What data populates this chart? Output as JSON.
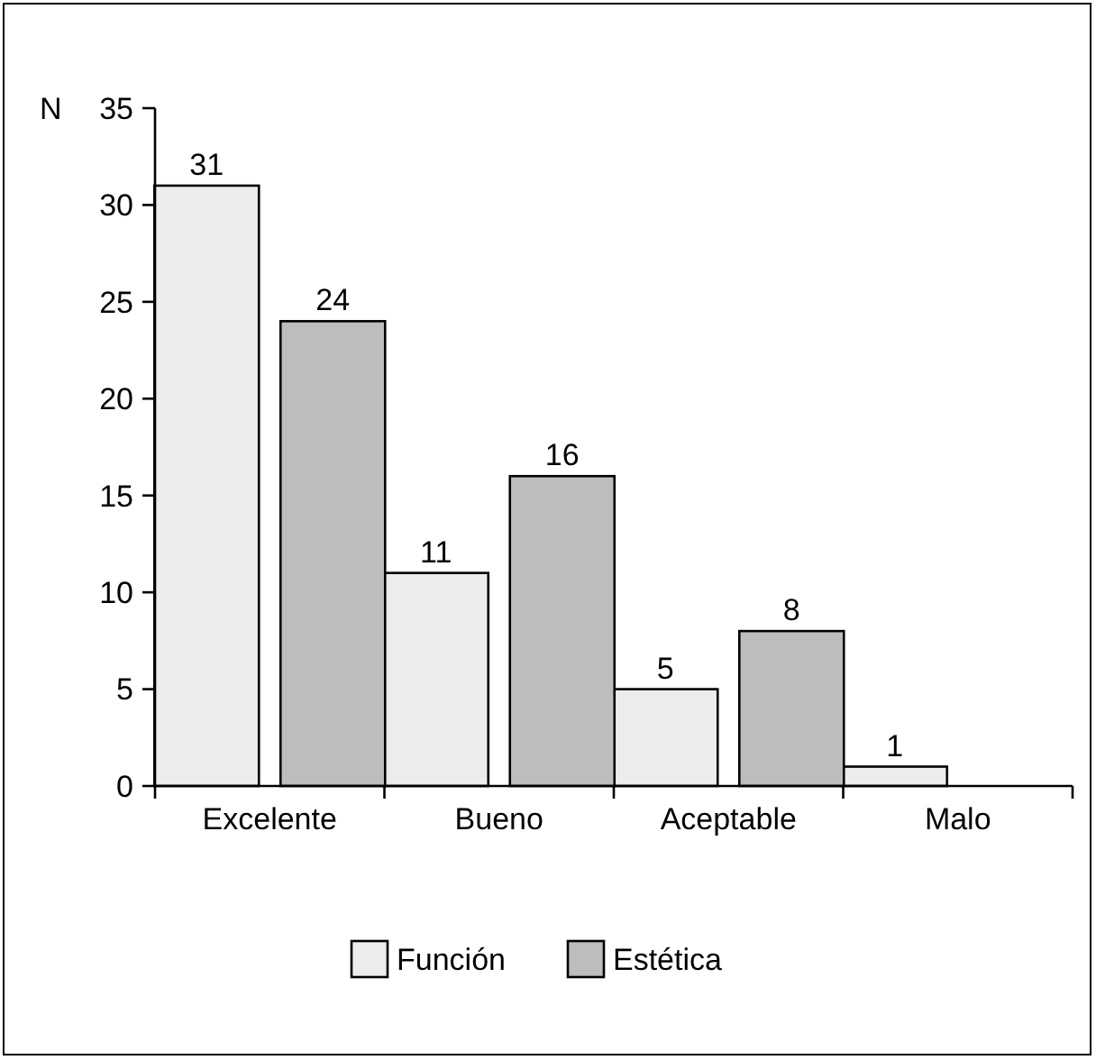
{
  "chart_data": {
    "type": "bar",
    "ylabel": "N",
    "categories": [
      "Excelente",
      "Bueno",
      "Aceptable",
      "Malo"
    ],
    "series": [
      {
        "name": "Función",
        "color": "#ececec",
        "values": [
          31,
          11,
          5,
          1
        ],
        "value_labels": [
          "31",
          "11",
          "5",
          "1"
        ]
      },
      {
        "name": "Estética",
        "color": "#bdbdbd",
        "values": [
          24,
          16,
          8,
          0
        ],
        "value_labels": [
          "24",
          "16",
          "8",
          null
        ]
      }
    ],
    "ylim": [
      0,
      35
    ],
    "yticks": [
      0,
      5,
      10,
      15,
      20,
      25,
      30,
      35
    ],
    "grid": false,
    "legend": "bottom"
  }
}
